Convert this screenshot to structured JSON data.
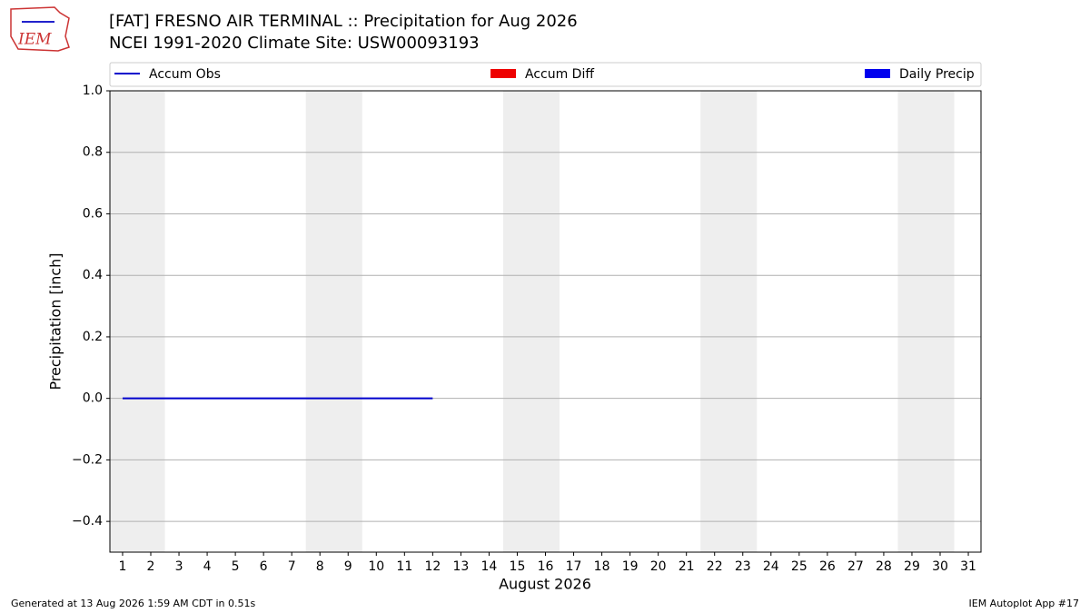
{
  "logo_text": "IEM",
  "footer_left": "Generated at 13 Aug 2026 1:59 AM CDT in 0.51s",
  "footer_right": "IEM Autoplot App #17",
  "chart_data": {
    "type": "line",
    "title": "[FAT] FRESNO AIR TERMINAL :: Precipitation for Aug 2026",
    "subtitle": "NCEI 1991-2020 Climate Site: USW00093193",
    "x_label": "August 2026",
    "y_label": "Precipitation [inch]",
    "x": [
      1,
      2,
      3,
      4,
      5,
      6,
      7,
      8,
      9,
      10,
      11,
      12
    ],
    "series": [
      {
        "name": "Accum Obs",
        "kind": "line",
        "color": "#0000cc",
        "values": [
          0,
          0,
          0,
          0,
          0,
          0,
          0,
          0,
          0,
          0,
          0,
          0
        ]
      },
      {
        "name": "Accum Diff",
        "kind": "bar",
        "color": "#ee0000",
        "values": [
          0,
          0,
          0,
          0,
          0,
          0,
          0,
          0,
          0,
          0,
          0,
          0
        ]
      },
      {
        "name": "Daily Precip",
        "kind": "bar",
        "color": "#0000ee",
        "values": [
          0,
          0,
          0,
          0,
          0,
          0,
          0,
          0,
          0,
          0,
          0,
          0
        ]
      }
    ],
    "xlim": [
      0.55,
      31.45
    ],
    "xticks": [
      1,
      2,
      3,
      4,
      5,
      6,
      7,
      8,
      9,
      10,
      11,
      12,
      13,
      14,
      15,
      16,
      17,
      18,
      19,
      20,
      21,
      22,
      23,
      24,
      25,
      26,
      27,
      28,
      29,
      30,
      31
    ],
    "ylim": [
      -0.5,
      1.0
    ],
    "yticks": [
      {
        "value": -0.4,
        "label": "−0.4"
      },
      {
        "value": -0.2,
        "label": "−0.2"
      },
      {
        "value": 0,
        "label": "0.0"
      },
      0.2,
      0.4,
      0.6,
      0.8,
      {
        "value": 1,
        "label": "1.0"
      }
    ],
    "shaded_ranges": [
      [
        0.55,
        2.5
      ],
      [
        7.5,
        9.5
      ],
      [
        14.5,
        16.5
      ],
      [
        21.5,
        23.5
      ],
      [
        28.5,
        30.5
      ]
    ],
    "shade_color": "#eeeeee",
    "grid": true
  }
}
